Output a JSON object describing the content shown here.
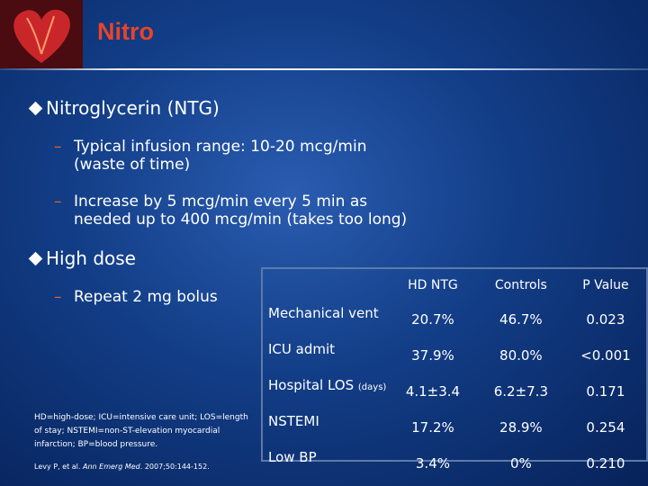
{
  "header": {
    "title": "Nitro"
  },
  "bullets": [
    {
      "text": "Nitroglycerin (NTG)",
      "sub": [
        {
          "lines": [
            "Typical infusion range: 10-20 mcg/min",
            "(waste of time)"
          ]
        },
        {
          "lines": [
            "Increase by 5 mcg/min every 5 min   as",
            "needed up to 400 mcg/min (takes too long)"
          ]
        }
      ]
    },
    {
      "text": "High dose",
      "sub": [
        {
          "lines": [
            "Repeat 2 mg bolus"
          ]
        }
      ]
    }
  ],
  "table": {
    "columns": [
      "HD NTG",
      "Controls",
      "P Value"
    ],
    "rows": [
      {
        "label": "Mechanical vent",
        "cells": [
          "20.7%",
          "46.7%",
          "0.023"
        ]
      },
      {
        "label": "ICU admit",
        "cells": [
          "37.9%",
          "80.0%",
          "<0.001"
        ]
      },
      {
        "label": "Hospital LOS",
        "note": "(days)",
        "cells": [
          "4.1±3.4",
          "6.2±7.3",
          "0.171"
        ]
      },
      {
        "label": "NSTEMI",
        "cells": [
          "17.2%",
          "28.9%",
          "0.254"
        ]
      },
      {
        "label": "Low BP",
        "cells": [
          "3.4%",
          "0%",
          "0.210"
        ]
      }
    ]
  },
  "footnote": "HD=high-dose; ICU=intensive care unit; LOS=length of stay; NSTEMI=non-ST-elevation myocardial infarction; BP=blood pressure.",
  "reference": {
    "authors": "Levy P, et al. ",
    "journal": "Ann Emerg Med",
    "citation": ". 2007;50:144-152."
  }
}
